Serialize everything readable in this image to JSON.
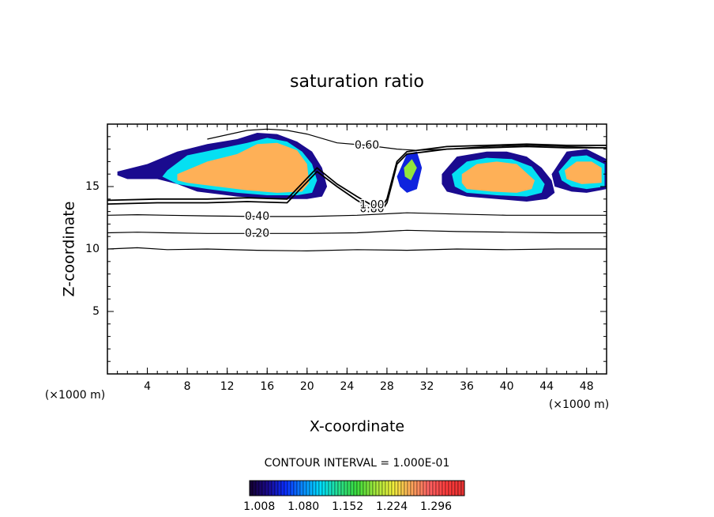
{
  "chart_data": {
    "type": "contour",
    "title": "saturation ratio",
    "x_label": "X-coordinate",
    "y_label": "Z-coordinate",
    "x_unit_left": "(×1000 m)",
    "x_unit_right": "(×1000 m)",
    "contour_interval": "CONTOUR INTERVAL = 1.000E-01",
    "xlim": [
      0,
      50
    ],
    "ylim": [
      0,
      20
    ],
    "xticks": [
      4,
      8,
      12,
      16,
      20,
      24,
      28,
      32,
      36,
      40,
      44,
      48
    ],
    "yticks": [
      5,
      10,
      15
    ],
    "clim": [
      1.0,
      1.35
    ],
    "cticks": [
      1.008,
      {
        "value": 1.08,
        "label": "1.080"
      },
      1.152,
      1.224,
      1.296
    ],
    "colormap": [
      "#140030",
      "#1a0a8c",
      "#0a2dff",
      "#0a8cff",
      "#00e0ff",
      "#28e08c",
      "#3cdc3c",
      "#a0e63c",
      "#f0f03c",
      "#ffaa5a",
      "#ff6464",
      "#ff3c3c",
      "#e63232"
    ],
    "regions": [
      {
        "value": 1.03,
        "x": [
          1,
          4,
          7,
          10,
          13,
          15,
          17,
          19,
          20.5,
          21.5,
          22,
          21.5,
          20,
          17,
          13,
          9,
          7,
          5,
          2,
          1
        ],
        "z": [
          16.2,
          16.8,
          17.8,
          18.4,
          18.8,
          19.3,
          19.2,
          18.6,
          17.8,
          16.5,
          15,
          14.2,
          14.0,
          14.0,
          14.2,
          14.6,
          15.2,
          15.6,
          15.6,
          15.9
        ]
      },
      {
        "value": 1.12,
        "x": [
          6,
          8,
          11,
          14,
          16,
          18,
          19.5,
          20.5,
          21,
          20.5,
          19,
          16,
          13,
          10,
          7,
          5.5
        ],
        "z": [
          16.3,
          17.5,
          18.0,
          18.5,
          18.9,
          18.6,
          17.8,
          16.8,
          15.5,
          14.5,
          14.3,
          14.3,
          14.5,
          14.8,
          15.2,
          15.8
        ]
      },
      {
        "value": 1.26,
        "x": [
          7,
          10,
          13,
          15,
          17,
          19,
          20,
          20.2,
          19.5,
          17,
          14,
          11,
          8,
          7
        ],
        "z": [
          16.0,
          17.0,
          17.6,
          18.4,
          18.5,
          17.9,
          16.8,
          15.3,
          14.6,
          14.5,
          14.7,
          15.0,
          15.3,
          15.5
        ]
      },
      {
        "value": 1.03,
        "x": [
          33.5,
          35,
          38,
          40,
          42,
          43.5,
          44.5,
          44.8,
          44,
          42,
          39,
          36,
          34,
          33.5
        ],
        "z": [
          16.0,
          17.4,
          17.8,
          17.8,
          17.4,
          16.5,
          15.5,
          14.5,
          14.0,
          13.8,
          14.0,
          14.2,
          14.6,
          15.2
        ]
      },
      {
        "value": 1.12,
        "x": [
          34.5,
          36,
          38,
          40.5,
          42.5,
          43.8,
          43.5,
          42,
          39,
          36,
          34.8
        ],
        "z": [
          16.0,
          17.0,
          17.3,
          17.2,
          16.6,
          15.2,
          14.5,
          14.2,
          14.3,
          14.5,
          15.0
        ]
      },
      {
        "value": 1.26,
        "x": [
          35.5,
          37,
          39,
          41,
          42.8,
          42.5,
          41,
          38.5,
          36,
          35.5
        ],
        "z": [
          16.0,
          16.8,
          17.0,
          16.8,
          15.5,
          14.8,
          14.5,
          14.6,
          14.8,
          15.3
        ]
      },
      {
        "value": 1.03,
        "x": [
          44.5,
          46,
          48,
          50,
          50,
          48,
          46.5,
          44.8
        ],
        "z": [
          16.0,
          17.8,
          18.0,
          17.2,
          14.8,
          14.5,
          14.6,
          15.0
        ]
      },
      {
        "value": 1.12,
        "x": [
          45.2,
          46.5,
          48,
          49.8,
          49.8,
          48,
          46.5,
          45.5
        ],
        "z": [
          16.2,
          17.4,
          17.5,
          16.8,
          15.0,
          14.8,
          15.0,
          15.5
        ]
      },
      {
        "value": 1.26,
        "x": [
          45.8,
          47,
          48.5,
          49.5,
          49.5,
          47.5,
          46
        ],
        "z": [
          16.3,
          17.0,
          17.0,
          16.5,
          15.3,
          15.2,
          15.6
        ]
      },
      {
        "value": 1.05,
        "x": [
          29,
          30,
          31,
          31.5,
          31,
          30,
          29.3
        ],
        "z": [
          15.8,
          17.6,
          17.8,
          16.5,
          14.8,
          14.5,
          15.0
        ]
      },
      {
        "value": 1.2,
        "x": [
          29.7,
          30.5,
          31,
          30.4,
          29.8
        ],
        "z": [
          16.5,
          17.2,
          16.5,
          15.5,
          15.8
        ]
      }
    ],
    "contours": [
      {
        "level": 0.1,
        "x": [
          0,
          3,
          6,
          10,
          15,
          20,
          25,
          30,
          35,
          40,
          45,
          50
        ],
        "z": [
          10.0,
          10.1,
          9.95,
          10.0,
          9.9,
          9.85,
          9.95,
          9.9,
          10.0,
          9.95,
          10.0,
          10.0
        ]
      },
      {
        "level": 0.2,
        "label": "0.20",
        "x": [
          0,
          3,
          6,
          10,
          15,
          20,
          25,
          30,
          35,
          40,
          45,
          50
        ],
        "z": [
          11.3,
          11.35,
          11.3,
          11.25,
          11.25,
          11.25,
          11.3,
          11.5,
          11.4,
          11.35,
          11.3,
          11.3
        ]
      },
      {
        "level": 0.4,
        "label": "0.40",
        "x": [
          0,
          3,
          6,
          10,
          15,
          20,
          25,
          30,
          35,
          40,
          45,
          50
        ],
        "z": [
          12.7,
          12.75,
          12.7,
          12.65,
          12.6,
          12.6,
          12.7,
          12.9,
          12.8,
          12.7,
          12.7,
          12.7
        ]
      },
      {
        "level": 0.8,
        "label": "0.80",
        "x": [
          0,
          5,
          10,
          14,
          18,
          21,
          23,
          25,
          26.5,
          27.5,
          28,
          28.5,
          29,
          30,
          32,
          34,
          38,
          42,
          46,
          50
        ],
        "z": [
          13.6,
          13.7,
          13.7,
          13.8,
          13.7,
          16.2,
          15.0,
          13.9,
          13.2,
          13.1,
          13.7,
          15.2,
          16.8,
          17.6,
          17.8,
          18.0,
          18.1,
          18.2,
          18.1,
          18.1
        ]
      },
      {
        "level": 1.0,
        "label": "1.00",
        "x": [
          0,
          5,
          10,
          14,
          18,
          21,
          23,
          25,
          26.5,
          27.5,
          28,
          28.5,
          29,
          30,
          32,
          34,
          38,
          42,
          46,
          50
        ],
        "z": [
          13.9,
          14.0,
          14.0,
          14.1,
          14.0,
          16.5,
          15.2,
          14.2,
          13.5,
          13.4,
          14.0,
          15.5,
          17.0,
          17.8,
          18.0,
          18.2,
          18.3,
          18.4,
          18.3,
          18.3
        ]
      },
      {
        "level": 0.6,
        "label": "0.60",
        "x": [
          10,
          14,
          16,
          18,
          20,
          23,
          26,
          29,
          31,
          34,
          36,
          38,
          42,
          46,
          50
        ],
        "z": [
          18.8,
          19.5,
          19.6,
          19.5,
          19.2,
          18.5,
          18.3,
          18.0,
          17.9,
          18.0,
          18.1,
          18.2,
          18.3,
          18.2,
          18.1
        ]
      }
    ]
  }
}
